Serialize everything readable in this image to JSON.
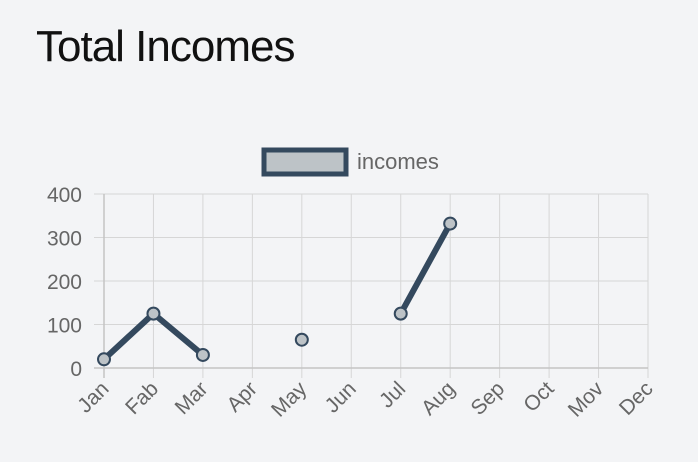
{
  "page": {
    "title": "Total Incomes"
  },
  "colors": {
    "line": "#34495e",
    "point_fill": "#bdc3c7",
    "grid": "#d6d6d6",
    "text": "#666666"
  },
  "chart_data": {
    "type": "line",
    "title": "",
    "xlabel": "",
    "ylabel": "",
    "categories": [
      "Jan",
      "Fab",
      "Mar",
      "Apr",
      "May",
      "Jun",
      "Jul",
      "Aug",
      "Sep",
      "Oct",
      "Mov",
      "Dec"
    ],
    "series": [
      {
        "name": "incomes",
        "values": [
          20,
          125,
          30,
          null,
          65,
          null,
          125,
          332,
          null,
          null,
          null,
          null
        ]
      }
    ],
    "ylim": [
      0,
      400
    ],
    "yticks": [
      0,
      100,
      200,
      300,
      400
    ],
    "grid": true,
    "legend": "top-center"
  }
}
